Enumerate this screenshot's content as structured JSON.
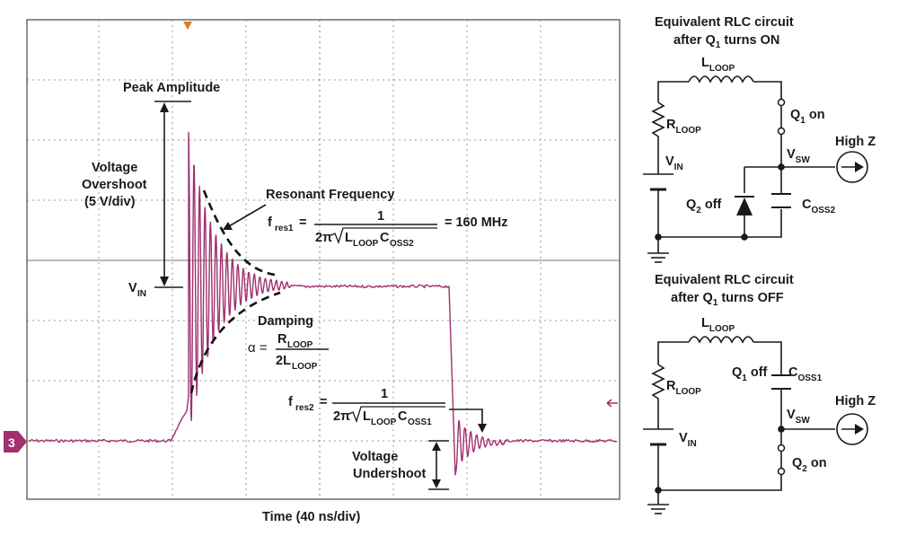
{
  "scope": {
    "channel_marker": "3",
    "time_label": "Time (40 ns/div)",
    "trace_color": "#a0306f",
    "marker_color": "#e07a1f"
  },
  "annotations": {
    "peak_amplitude": "Peak Amplitude",
    "overshoot_line1": "Voltage",
    "overshoot_line2": "Overshoot",
    "overshoot_line3": "(5 V/div)",
    "vin_base": "V",
    "vin_sub": "IN",
    "resonant_frequency": "Resonant Frequency",
    "fres1_base": "f",
    "fres1_sub": "res1",
    "equals": "=",
    "numerator_one": "1",
    "two_pi": "2π",
    "l_loop_base": "L",
    "loop_sub": "LOOP",
    "c_base": "C",
    "oss2_sub": "OSS2",
    "fres1_value": "= 160 MHz",
    "damping": "Damping",
    "alpha": "α =",
    "r_loop_base": "R",
    "two_l_base": "2L",
    "fres2_base": "f",
    "fres2_sub": "res2",
    "oss1_sub": "OSS1",
    "undershoot_line1": "Voltage",
    "undershoot_line2": "Undershoot"
  },
  "circuit_on": {
    "title_line1": "Equivalent RLC circuit",
    "title_line2_pre": "after Q",
    "title_line2_sub": "1",
    "title_line2_post": " turns ON",
    "l_base": "L",
    "l_sub": "LOOP",
    "r_base": "R",
    "r_sub": "LOOP",
    "q1_base": "Q",
    "q1_sub": "1",
    "q1_state": " on",
    "vin_base": "V",
    "vin_sub": "IN",
    "vsw_base": "V",
    "vsw_sub": "SW",
    "highz": "High Z",
    "q2_base": "Q",
    "q2_sub": "2",
    "q2_state": " off",
    "c_base": "C",
    "c_sub": "OSS2"
  },
  "circuit_off": {
    "title_line1": "Equivalent RLC circuit",
    "title_line2_pre": "after Q",
    "title_line2_sub": "1",
    "title_line2_post": " turns OFF",
    "l_base": "L",
    "l_sub": "LOOP",
    "r_base": "R",
    "r_sub": "LOOP",
    "q1_base": "Q",
    "q1_sub": "1",
    "q1_state": " off",
    "c_base": "C",
    "c_sub": "OSS1",
    "vin_base": "V",
    "vin_sub": "IN",
    "vsw_base": "V",
    "vsw_sub": "SW",
    "highz": "High Z",
    "q2_base": "Q",
    "q2_sub": "2",
    "q2_state": " on"
  }
}
